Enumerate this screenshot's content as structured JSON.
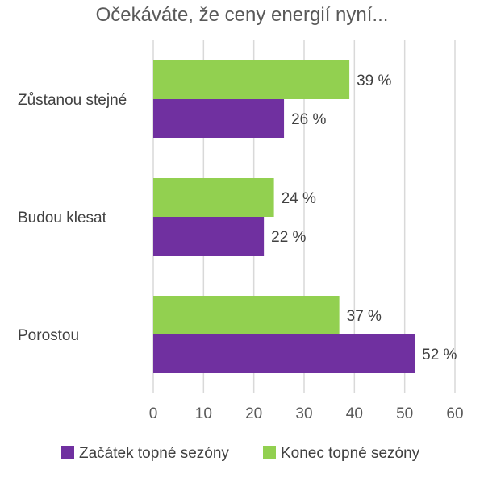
{
  "chart_data": {
    "type": "bar",
    "orientation": "horizontal",
    "title": "Očekáváte, že ceny energií nyní...",
    "categories": [
      "Zůstanou stejné",
      "Budou klesat",
      "Porostou"
    ],
    "series": [
      {
        "name": "Konec topné sezóny",
        "color": "#92d050",
        "values": [
          39,
          24,
          37
        ],
        "labels": [
          "39 %",
          "24 %",
          "37 %"
        ]
      },
      {
        "name": "Začátek topné sezóny",
        "color": "#7030a0",
        "values": [
          26,
          22,
          52
        ],
        "labels": [
          "26 %",
          "22 %",
          "52 %"
        ]
      }
    ],
    "xlim": [
      0,
      60
    ],
    "xticks": [
      0,
      10,
      20,
      30,
      40,
      50,
      60
    ],
    "xtick_labels": [
      "0",
      "10",
      "20",
      "30",
      "40",
      "50",
      "60"
    ],
    "grid": true,
    "legend": {
      "position": "bottom",
      "items": [
        {
          "name": "Začátek topné sezóny",
          "color": "#7030a0"
        },
        {
          "name": "Konec topné sezóny",
          "color": "#92d050"
        }
      ]
    }
  }
}
